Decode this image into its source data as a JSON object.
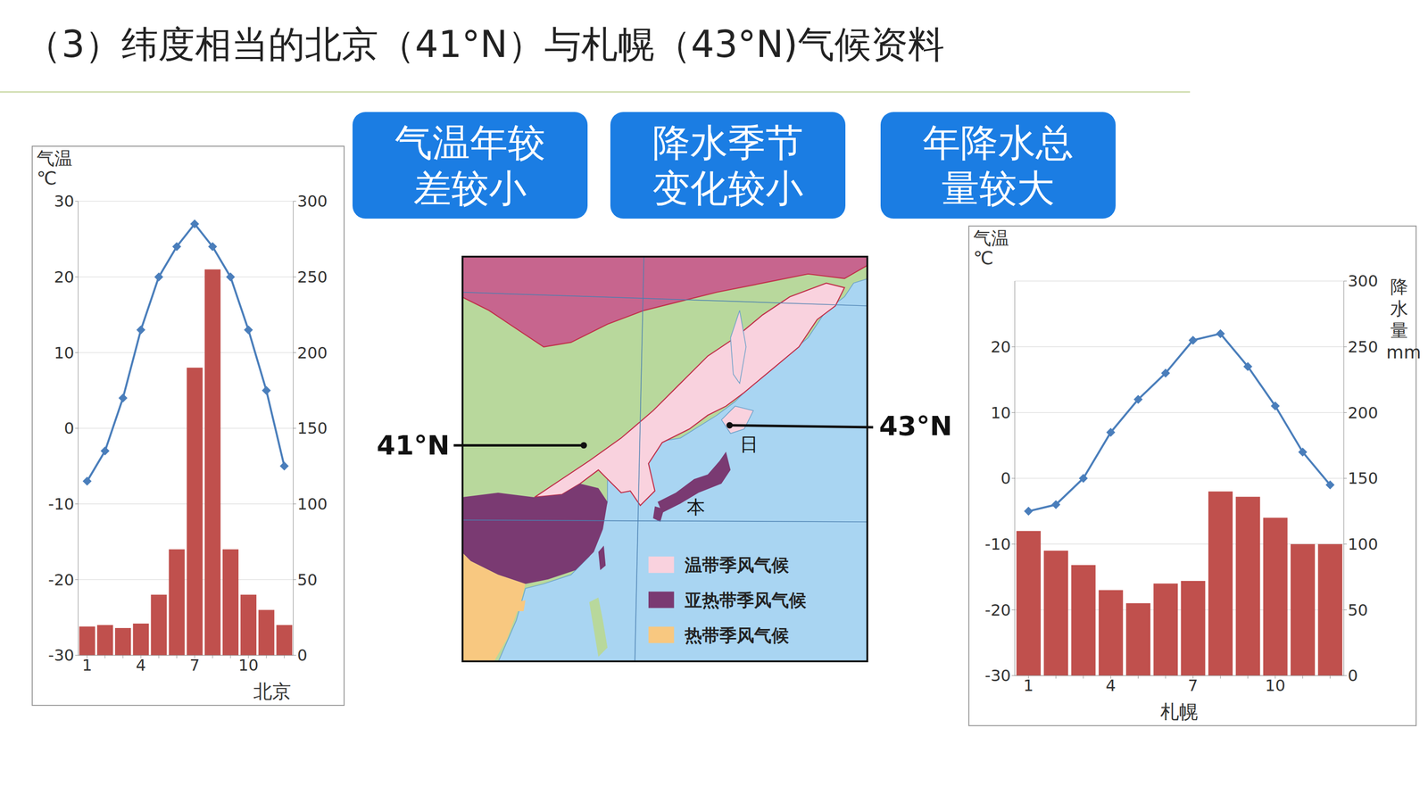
{
  "title": "（3）纬度相当的北京（41°N）与札幌（43°N)气候资料",
  "boxes": [
    "气温年较差较小",
    "降水季节变化较小",
    "年降水总量较大"
  ],
  "chart_data": [
    {
      "type": "bar",
      "xlabel": "北京",
      "ylabel": "气温℃",
      "categories": [
        "1",
        null,
        null,
        "4",
        null,
        null,
        "7",
        null,
        null,
        "10",
        null,
        null
      ],
      "series": [
        {
          "type": "line",
          "color": "#4a7ebb",
          "marker": "diamond",
          "values": [
            -7,
            -3,
            4,
            13,
            20,
            24,
            27,
            24,
            20,
            13,
            5,
            -5
          ]
        },
        {
          "type": "bar",
          "color": "#c0504d",
          "axis": "y2",
          "values": [
            19,
            20,
            18,
            21,
            40,
            70,
            190,
            255,
            70,
            40,
            30,
            20
          ]
        }
      ],
      "ylim": [
        -30,
        30
      ],
      "yticks": [
        -30,
        -20,
        -10,
        0,
        10,
        20,
        30
      ],
      "y2lim": [
        0,
        300
      ],
      "y2ticks": [
        0,
        50,
        100,
        150,
        200,
        250,
        300
      ],
      "grid": true
    },
    {
      "type": "bar",
      "xlabel": "札幌",
      "ylabel": "气温℃",
      "y2label": "降水量mm",
      "categories": [
        "1",
        null,
        null,
        "4",
        null,
        null,
        "7",
        null,
        null,
        "10",
        null,
        null
      ],
      "series": [
        {
          "type": "line",
          "color": "#4a7ebb",
          "marker": "diamond",
          "values": [
            -5,
            -4,
            0,
            7,
            12,
            16,
            21,
            22,
            17,
            11,
            4,
            -1
          ]
        },
        {
          "type": "bar",
          "color": "#c0504d",
          "axis": "y2",
          "values": [
            110,
            95,
            84,
            65,
            55,
            70,
            72,
            140,
            136,
            120,
            100,
            100
          ]
        }
      ],
      "ylim": [
        -30,
        30
      ],
      "yticks": [
        -30,
        -20,
        -10,
        0,
        10,
        20
      ],
      "y2lim": [
        0,
        300
      ],
      "y2ticks": [
        0,
        50,
        100,
        150,
        200,
        250,
        300
      ],
      "grid": true
    }
  ],
  "map": {
    "lat_labels": [
      "41°N",
      "43°N"
    ],
    "country_label": [
      "日",
      "本"
    ],
    "legend": [
      {
        "label": "温带季风气候",
        "color": "#f9d2de"
      },
      {
        "label": "亚热带季风气候",
        "color": "#7a3a72"
      },
      {
        "label": "热带季风气候",
        "color": "#f8c880"
      }
    ]
  }
}
